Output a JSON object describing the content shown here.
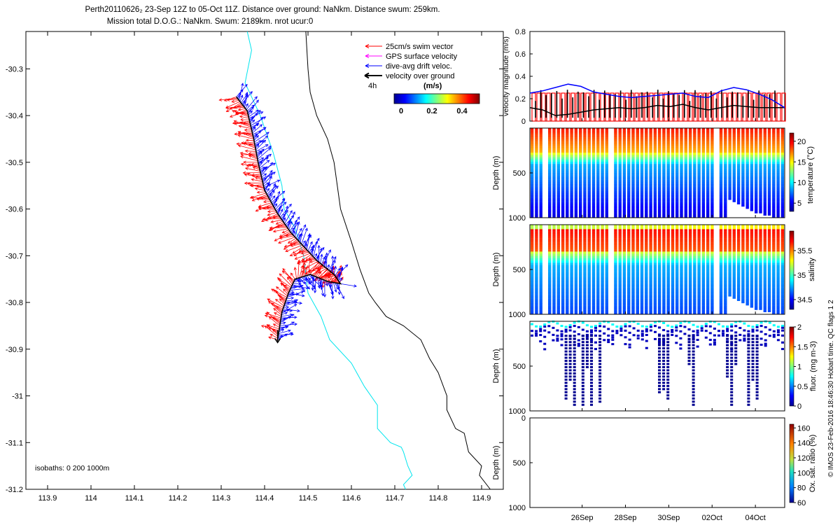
{
  "title": {
    "line1": "Perth20110626₂ 23-Sep 12Z to 05-Oct 11Z. Distance over ground: NaNkm. Distance swum: 259km.",
    "line2": "Mission total D.O.G.: NaNkm. Swum: 2189km. nrot ucur:0"
  },
  "colors": {
    "swim": "#ff0000",
    "gps": "#ff00ff",
    "drift": "#0000ff",
    "ground": "#000000",
    "isobath_200": "#00e5ee",
    "isobath_1000": "#000000"
  },
  "map": {
    "legend": {
      "swim": "25cm/s swim vector",
      "gps": "GPS surface velocity",
      "drift": "dive-avg drift veloc.",
      "ground": "velocity over ground",
      "time_step": "4h"
    },
    "colorbar": {
      "label": "(m/s)",
      "ticks": [
        "0",
        "0.2",
        "0.4"
      ]
    },
    "isobath_label": "isobaths: 0   200  1000m"
  },
  "chart_data": [
    {
      "type": "scatter",
      "name": "glider-track-map",
      "xlabel": "",
      "ylabel": "",
      "xlim": [
        113.85,
        114.95
      ],
      "ylim": [
        -31.2,
        -30.22
      ],
      "xticks": [
        "113.9",
        "114",
        "114.1",
        "114.2",
        "114.3",
        "114.4",
        "114.5",
        "114.6",
        "114.7",
        "114.8",
        "114.9"
      ],
      "yticks": [
        "-30.3",
        "-30.4",
        "-30.5",
        "-30.6",
        "-30.7",
        "-30.8",
        "-30.9",
        "-31",
        "-31.1",
        "-31.2"
      ],
      "track": {
        "lon": [
          114.335,
          114.36,
          114.375,
          114.385,
          114.4,
          114.43,
          114.46,
          114.49,
          114.52,
          114.56,
          114.575,
          114.545,
          114.505,
          114.47,
          114.455,
          114.44,
          114.43
        ],
        "lat": [
          -30.36,
          -30.39,
          -30.45,
          -30.5,
          -30.56,
          -30.61,
          -30.65,
          -30.68,
          -30.71,
          -30.74,
          -30.76,
          -30.755,
          -30.74,
          -30.75,
          -30.78,
          -30.82,
          -30.88
        ]
      },
      "isobath_200": {
        "lon": [
          114.36,
          114.37,
          114.355,
          114.39,
          114.42,
          114.44,
          114.445,
          114.47,
          114.49,
          114.5,
          114.53,
          114.55,
          114.6,
          114.63,
          114.66,
          114.66,
          114.69,
          114.715,
          114.72,
          114.73,
          114.74,
          114.72,
          114.725
        ],
        "lat": [
          -30.22,
          -30.26,
          -30.33,
          -30.4,
          -30.48,
          -30.55,
          -30.6,
          -30.64,
          -30.7,
          -30.78,
          -30.83,
          -30.88,
          -30.93,
          -30.98,
          -31.02,
          -31.07,
          -31.1,
          -31.11,
          -31.12,
          -31.15,
          -31.17,
          -31.19,
          -31.2
        ]
      },
      "isobath_1000": {
        "lon": [
          114.495,
          114.5,
          114.505,
          114.52,
          114.545,
          114.56,
          114.575,
          114.6,
          114.62,
          114.64,
          114.655,
          114.68,
          114.72,
          114.76,
          114.78,
          114.8,
          114.82,
          114.82,
          114.84,
          114.86,
          114.87,
          114.9,
          114.895,
          114.92
        ],
        "lat": [
          -30.22,
          -30.3,
          -30.35,
          -30.4,
          -30.45,
          -30.5,
          -30.6,
          -30.67,
          -30.73,
          -30.78,
          -30.8,
          -30.83,
          -30.85,
          -30.88,
          -30.92,
          -30.95,
          -31.0,
          -31.03,
          -31.07,
          -31.08,
          -31.12,
          -31.15,
          -31.17,
          -31.2
        ]
      }
    },
    {
      "type": "line",
      "name": "velocity-magnitude",
      "ylabel": "velocity magnitude (m/s)",
      "ylim": [
        0,
        0.8
      ],
      "yticks": [
        "0",
        "0.2",
        "0.4",
        "0.6",
        "0.8"
      ],
      "series": [
        {
          "name": "dive-avg drift",
          "color": "#0000ff",
          "x": [
            0,
            0.05,
            0.1,
            0.15,
            0.2,
            0.25,
            0.3,
            0.35,
            0.4,
            0.45,
            0.5,
            0.55,
            0.6,
            0.65,
            0.7,
            0.75,
            0.8,
            0.85,
            0.9,
            0.95,
            1.0
          ],
          "values": [
            0.25,
            0.27,
            0.3,
            0.33,
            0.31,
            0.26,
            0.24,
            0.22,
            0.21,
            0.22,
            0.23,
            0.24,
            0.25,
            0.22,
            0.21,
            0.27,
            0.3,
            0.28,
            0.24,
            0.19,
            0.12
          ]
        },
        {
          "name": "velocity over ground",
          "color": "#000000",
          "x": [
            0,
            0.05,
            0.1,
            0.15,
            0.2,
            0.25,
            0.3,
            0.35,
            0.4,
            0.45,
            0.5,
            0.55,
            0.6,
            0.65,
            0.7,
            0.75,
            0.8,
            0.85,
            0.9,
            0.95,
            1.0
          ],
          "values": [
            0.12,
            0.1,
            0.05,
            0.06,
            0.08,
            0.1,
            0.11,
            0.12,
            0.11,
            0.12,
            0.14,
            0.13,
            0.15,
            0.12,
            0.1,
            0.12,
            0.14,
            0.13,
            0.12,
            0.12,
            0.12
          ]
        },
        {
          "name": "swim vector",
          "color": "#ff0000",
          "value": 0.25
        }
      ]
    },
    {
      "type": "heatmap",
      "name": "temperature-section",
      "ylabel": "Depth (m)",
      "yticks": [
        "500",
        "1000"
      ],
      "colorbar_label": "temperature (°C)",
      "colorbar_ticks": [
        "5",
        "10",
        "15",
        "20"
      ],
      "clim": [
        3,
        22
      ]
    },
    {
      "type": "heatmap",
      "name": "salinity-section",
      "ylabel": "Depth (m)",
      "yticks": [
        "500",
        "1000"
      ],
      "colorbar_label": "salinity",
      "colorbar_ticks": [
        "34.5",
        "35",
        "35.5"
      ],
      "clim": [
        34.3,
        35.9
      ]
    },
    {
      "type": "heatmap",
      "name": "fluorescence-section",
      "ylabel": "Depth (m)",
      "yticks": [
        "500",
        "1000"
      ],
      "colorbar_label": "fluor. (mg m-3)",
      "colorbar_ticks": [
        "0",
        "0.5",
        "1",
        "1.5",
        "2"
      ],
      "clim": [
        0,
        2
      ]
    },
    {
      "type": "heatmap",
      "name": "oxygen-section",
      "ylabel": "Depth (m)",
      "yticks": [
        "0",
        "500",
        "1000"
      ],
      "colorbar_label": "Ox. sat. ratio (%)",
      "colorbar_ticks": [
        "60",
        "80",
        "100",
        "120",
        "140",
        "160"
      ],
      "clim": [
        60,
        165
      ],
      "xticks": [
        "26Sep",
        "28Sep",
        "30Sep",
        "02Oct",
        "04Oct"
      ]
    }
  ],
  "side_note": "© IMOS 23-Feb-2016 18:46:30 Hobart time. QC flags 1  2"
}
